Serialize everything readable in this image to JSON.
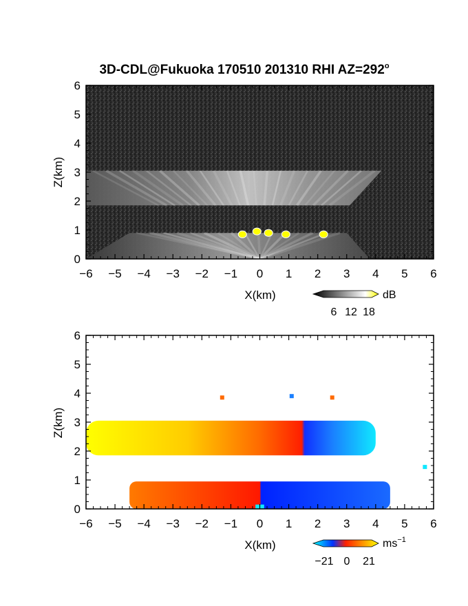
{
  "figure": {
    "title": "3D-CDL@Fukuoka 170510 201310 RHI AZ=292",
    "degree_mark": "o"
  },
  "chart_data": [
    {
      "type": "heatmap",
      "panel": "reflectivity",
      "xlabel": "X(km)",
      "ylabel": "Z(km)",
      "xlim": [
        -6,
        6
      ],
      "ylim": [
        0,
        6
      ],
      "xticks": [
        "-6",
        "-5",
        "-4",
        "-3",
        "-2",
        "-1",
        "0",
        "1",
        "2",
        "3",
        "4",
        "5",
        "6"
      ],
      "yticks": [
        "0",
        "1",
        "2",
        "3",
        "4",
        "5",
        "6"
      ],
      "colormap": "grayscale",
      "colorbar": {
        "unit": "dB",
        "ticks": [
          "6",
          "12",
          "18"
        ],
        "colors": [
          "#000000",
          "#ffffff",
          "#ffff00"
        ]
      },
      "layers": [
        {
          "name": "upper",
          "z_bottom": 1.85,
          "z_top": 3.05,
          "x_left_bottom": -6.0,
          "x_right_bottom": 3.1,
          "x_left_top": -6.0,
          "x_right_top": 4.2,
          "peak_db": 16
        },
        {
          "name": "lower",
          "z_bottom": 0.0,
          "z_top": 0.9,
          "x_left_bottom": -6.0,
          "x_right_bottom": 3.8,
          "x_left_top": -4.5,
          "x_right_top": 3.0,
          "peak_db": 14
        }
      ],
      "high_echo_patches": [
        {
          "x": -0.1,
          "z": 0.95,
          "db": 19
        },
        {
          "x": 0.3,
          "z": 0.9,
          "db": 19
        },
        {
          "x": -0.6,
          "z": 0.85,
          "db": 18
        },
        {
          "x": 0.9,
          "z": 0.85,
          "db": 18
        },
        {
          "x": 2.2,
          "z": 0.85,
          "db": 18
        }
      ]
    },
    {
      "type": "heatmap",
      "panel": "radial_velocity",
      "xlabel": "X(km)",
      "ylabel": "Z(km)",
      "xlim": [
        -6,
        6
      ],
      "ylim": [
        0,
        6
      ],
      "xticks": [
        "-6",
        "-5",
        "-4",
        "-3",
        "-2",
        "-1",
        "0",
        "1",
        "2",
        "3",
        "4",
        "5",
        "6"
      ],
      "yticks": [
        "0",
        "1",
        "2",
        "3",
        "4",
        "5",
        "6"
      ],
      "colormap": "diverging_cyan_blue_red_yellow",
      "colorbar": {
        "unit": "ms",
        "unit_exponent": "−1",
        "ticks": [
          "−21",
          "0",
          "21"
        ],
        "colors": [
          "#00ffff",
          "#0033ff",
          "#ff2200",
          "#ffff00"
        ]
      },
      "layers": [
        {
          "name": "upper",
          "z_bottom": 1.85,
          "z_top": 3.05,
          "x_left": -6.0,
          "x_right": 4.0,
          "velocity_left_ms": 21,
          "velocity_right_ms": -19
        },
        {
          "name": "lower",
          "z_bottom": 0.0,
          "z_top": 0.95,
          "x_left": -4.5,
          "x_right": 4.5,
          "velocity_left_ms": 8,
          "velocity_right_ms": -10
        }
      ],
      "scatter_points": [
        {
          "x": -1.3,
          "z": 3.85,
          "v": 10
        },
        {
          "x": 1.1,
          "z": 3.9,
          "v": -12
        },
        {
          "x": 2.5,
          "z": 3.85,
          "v": 8
        },
        {
          "x": 5.7,
          "z": 1.45,
          "v": -20
        }
      ]
    }
  ]
}
